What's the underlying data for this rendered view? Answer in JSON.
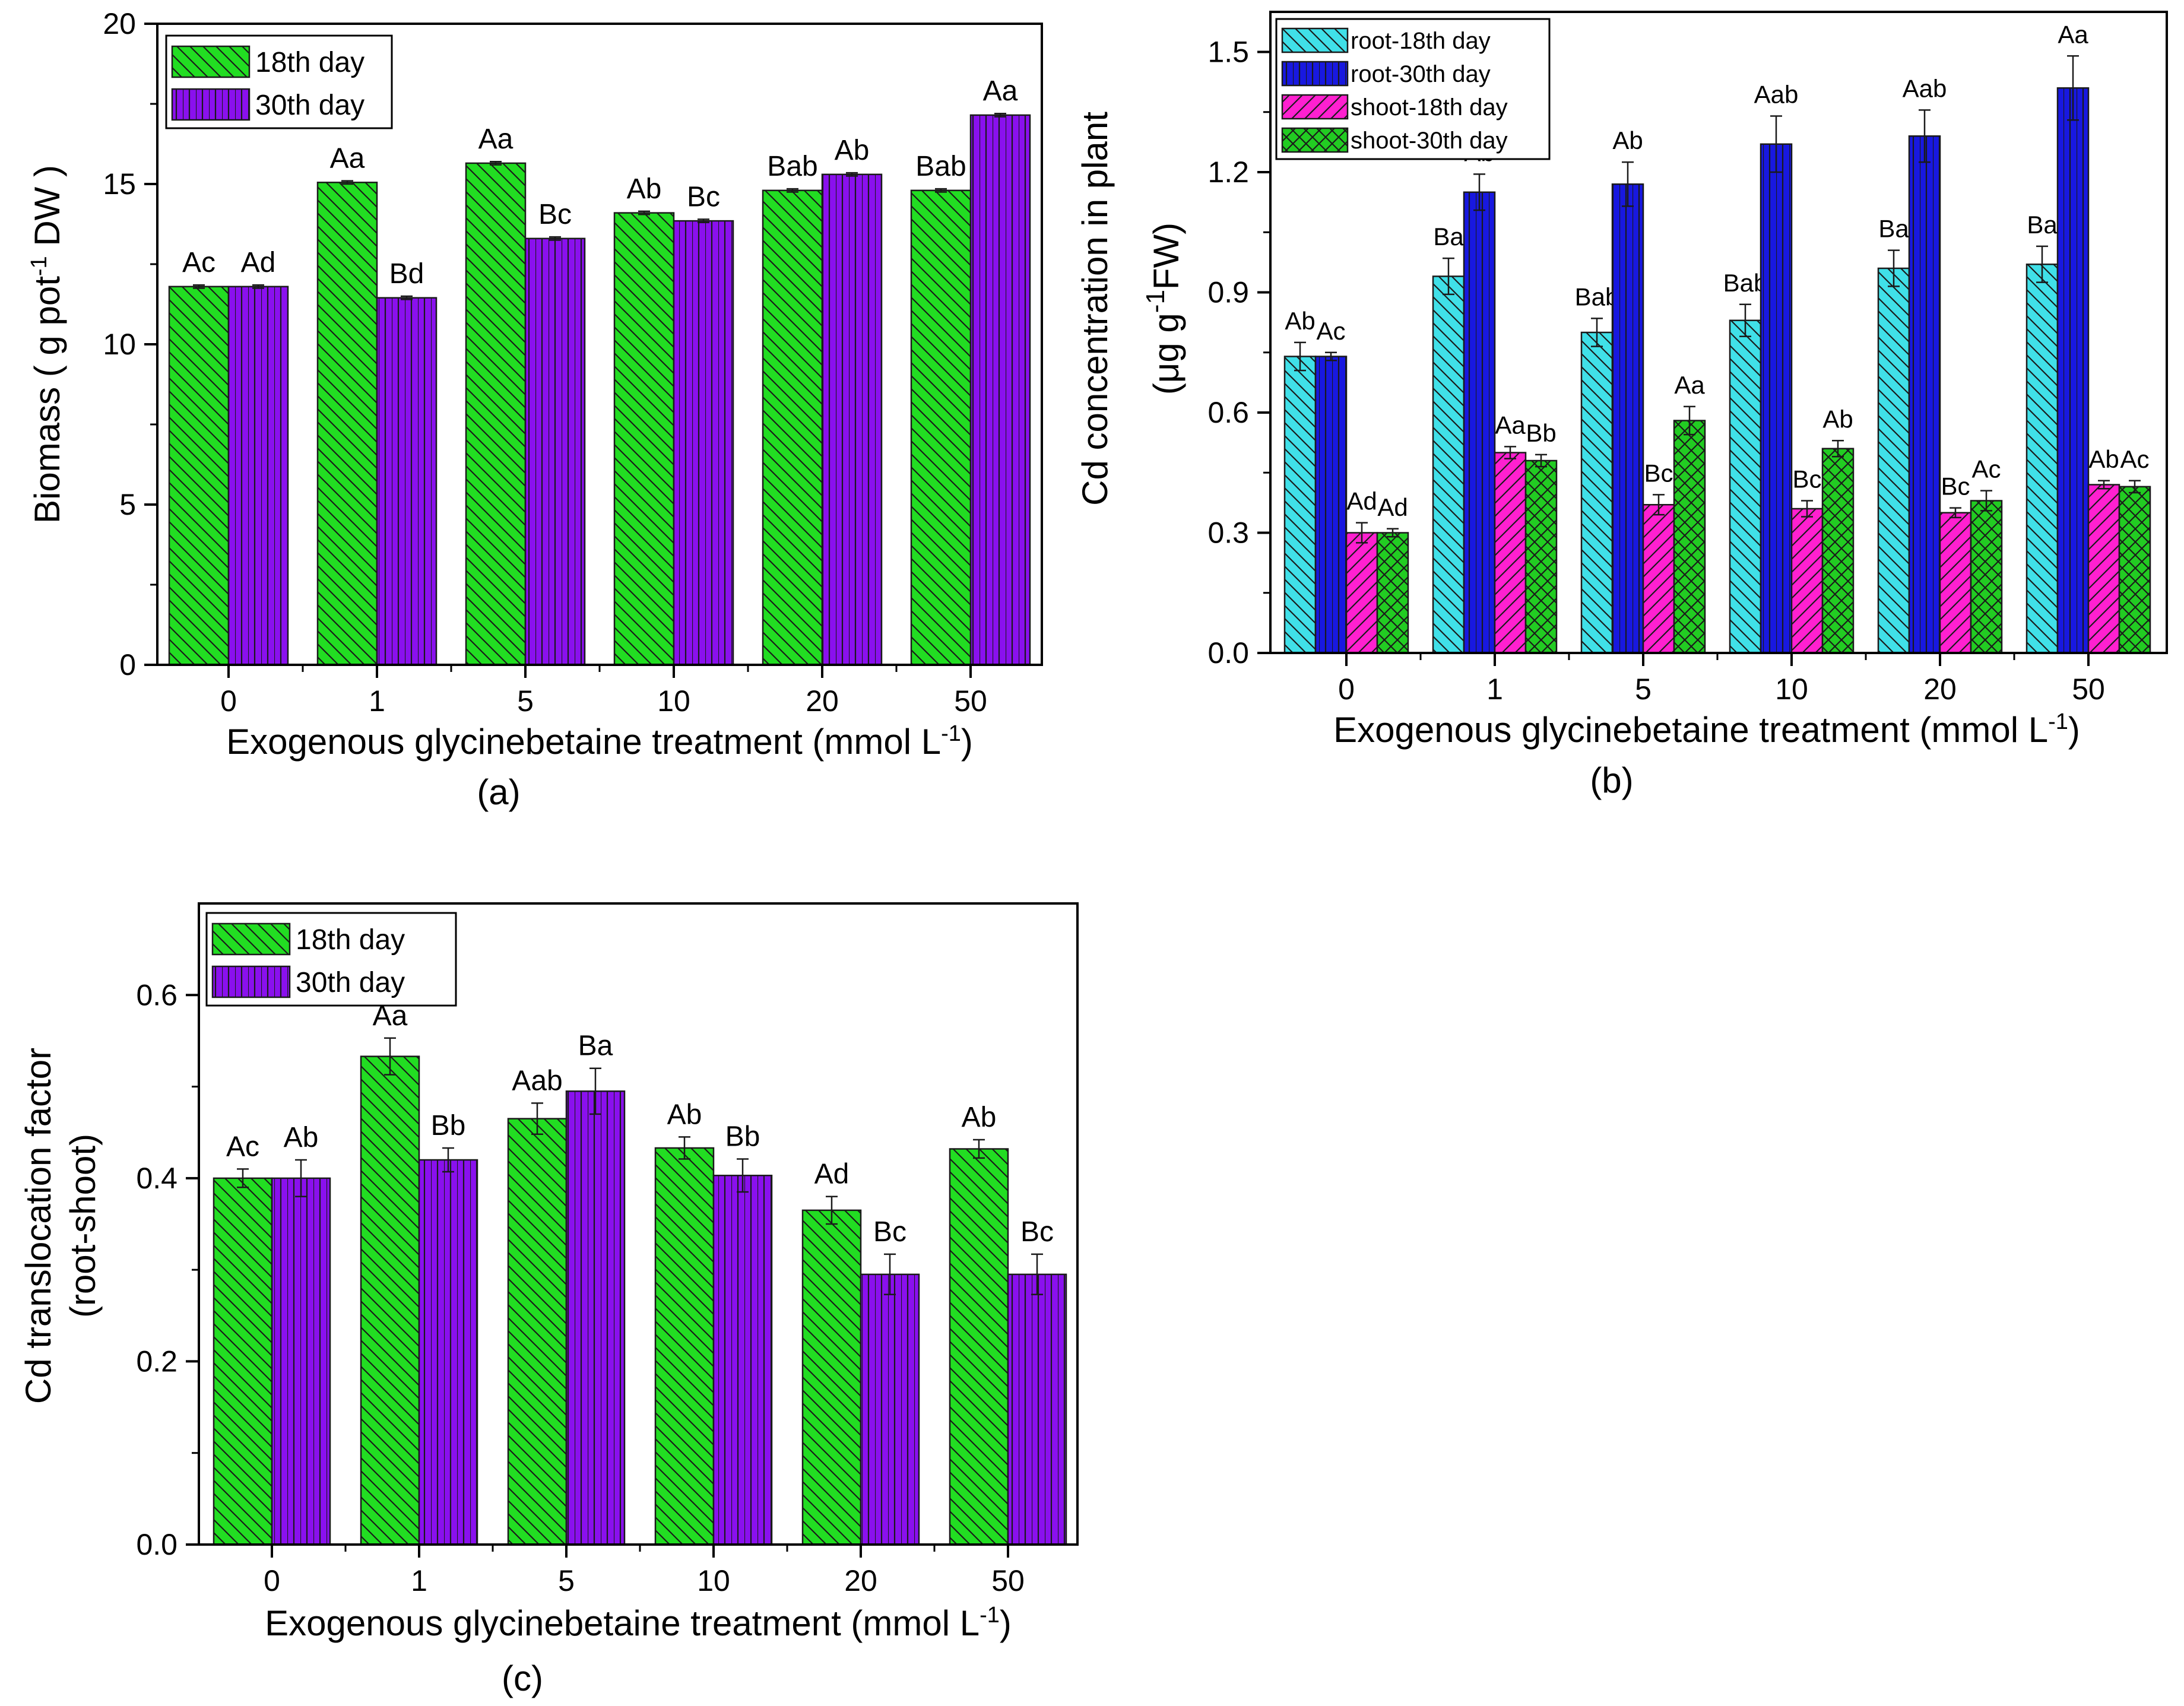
{
  "chart_data": [
    {
      "id": "a",
      "type": "bar",
      "panel_label": "(a)",
      "categories": [
        "0",
        "1",
        "5",
        "10",
        "20",
        "50"
      ],
      "series": [
        {
          "name": "18th day",
          "color": "#22dd22",
          "hatch": "diag-right",
          "values": [
            11.8,
            15.05,
            15.65,
            14.1,
            14.8,
            14.8
          ],
          "errors": [
            0.05,
            0.05,
            0.05,
            0.05,
            0.05,
            0.05
          ],
          "labels": [
            "Ac",
            "Aa",
            "Aa",
            "Ab",
            "Bab",
            "Bab"
          ]
        },
        {
          "name": "30th day",
          "color": "#8a10ee",
          "hatch": "vertical",
          "values": [
            11.8,
            11.45,
            13.3,
            13.85,
            15.3,
            17.15
          ],
          "errors": [
            0.05,
            0.05,
            0.05,
            0.05,
            0.05,
            0.05
          ],
          "labels": [
            "Ad",
            "Bd",
            "Bc",
            "Bc",
            "Ab",
            "Aa"
          ]
        }
      ],
      "xlabel_main": "Exogenous glycinebetaine treatment (mmol L",
      "xlabel_sup": "-1",
      "xlabel_end": ")",
      "ylabel_main": "Biomass  ( g pot",
      "ylabel_sup": "-1",
      "ylabel_end": " DW )",
      "ylim": [
        0,
        20
      ],
      "yticks": [
        0,
        5,
        10,
        15,
        20
      ],
      "ytick_labels": [
        "0",
        "5",
        "10",
        "15",
        "20"
      ],
      "legend_position": "top-left"
    },
    {
      "id": "b",
      "type": "bar",
      "panel_label": "(b)",
      "categories": [
        "0",
        "1",
        "5",
        "10",
        "20",
        "50"
      ],
      "series": [
        {
          "name": "root-18th day",
          "color": "#40e0e8",
          "hatch": "diag-right",
          "values": [
            0.74,
            0.94,
            0.8,
            0.83,
            0.96,
            0.97
          ],
          "errors": [
            0.035,
            0.045,
            0.035,
            0.04,
            0.045,
            0.045
          ],
          "labels": [
            "Ab",
            "Ba",
            "Bab",
            "Bab",
            "Ba",
            "Ba"
          ]
        },
        {
          "name": "root-30th day",
          "color": "#1818e0",
          "hatch": "vertical",
          "values": [
            0.74,
            1.15,
            1.17,
            1.27,
            1.29,
            1.41
          ],
          "errors": [
            0.01,
            0.045,
            0.055,
            0.07,
            0.065,
            0.08
          ],
          "labels": [
            "Ac",
            "Ab",
            "Ab",
            "Aab",
            "Aab",
            "Aa"
          ]
        },
        {
          "name": "shoot-18th day",
          "color": "#ff20d0",
          "hatch": "diag-left",
          "values": [
            0.3,
            0.5,
            0.37,
            0.36,
            0.35,
            0.42
          ],
          "errors": [
            0.025,
            0.015,
            0.025,
            0.02,
            0.012,
            0.01
          ],
          "labels": [
            "Ad",
            "Aa",
            "Bc",
            "Bc",
            "Bc",
            "Ab"
          ]
        },
        {
          "name": "shoot-30th day",
          "color": "#22cc22",
          "hatch": "cross",
          "values": [
            0.3,
            0.48,
            0.58,
            0.51,
            0.38,
            0.415
          ],
          "errors": [
            0.01,
            0.015,
            0.035,
            0.02,
            0.025,
            0.015
          ],
          "labels": [
            "Ad",
            "Bb",
            "Aa",
            "Ab",
            "Ac",
            "Ac"
          ]
        }
      ],
      "xlabel_main": "Exogenous glycinebetaine treatment (mmol L",
      "xlabel_sup": "-1",
      "xlabel_end": ")",
      "ylabel_line1": "Cd concentration in plant",
      "ylabel_line2_main": "(μg g",
      "ylabel_line2_sup": "-1",
      "ylabel_line2_end": "FW)",
      "ylim": [
        0,
        1.6
      ],
      "yticks": [
        0,
        0.3,
        0.6,
        0.9,
        1.2,
        1.5
      ],
      "ytick_labels": [
        "0.0",
        "0.3",
        "0.6",
        "0.9",
        "1.2",
        "1.5"
      ],
      "legend_position": "top-left"
    },
    {
      "id": "c",
      "type": "bar",
      "panel_label": "(c)",
      "categories": [
        "0",
        "1",
        "5",
        "10",
        "20",
        "50"
      ],
      "series": [
        {
          "name": "18th day",
          "color": "#22dd22",
          "hatch": "diag-right",
          "values": [
            0.4,
            0.533,
            0.465,
            0.433,
            0.365,
            0.432
          ],
          "errors": [
            0.01,
            0.02,
            0.017,
            0.012,
            0.015,
            0.01
          ],
          "labels": [
            "Ac",
            "Aa",
            "Aab",
            "Ab",
            "Ad",
            "Ab"
          ]
        },
        {
          "name": "30th day",
          "color": "#8a10ee",
          "hatch": "vertical",
          "values": [
            0.4,
            0.42,
            0.495,
            0.403,
            0.295,
            0.295
          ],
          "errors": [
            0.02,
            0.013,
            0.025,
            0.018,
            0.022,
            0.022
          ],
          "labels": [
            "Ab",
            "Bb",
            "Ba",
            "Bb",
            "Bc",
            "Bc"
          ]
        }
      ],
      "xlabel_main": "Exogenous glycinebetaine treatment (mmol L",
      "xlabel_sup": "-1",
      "xlabel_end": ")",
      "ylabel_line1": "Cd translocation factor",
      "ylabel_line2": "(root-shoot)",
      "ylim": [
        0,
        0.7
      ],
      "yticks": [
        0,
        0.2,
        0.4,
        0.6
      ],
      "ytick_labels": [
        "0.0",
        "0.2",
        "0.4",
        "0.6"
      ],
      "legend_position": "top-left"
    }
  ]
}
